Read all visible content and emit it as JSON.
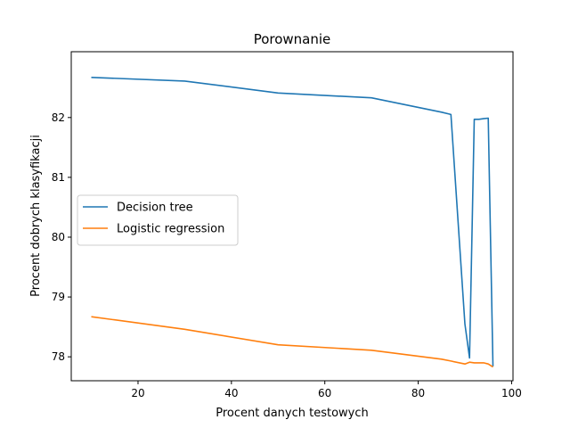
{
  "chart_data": {
    "type": "line",
    "title": "Porownanie",
    "xlabel": "Procent danych testowych",
    "ylabel": "Procent dobrych klasyfikacji",
    "xlim": [
      5.7,
      100.3
    ],
    "ylim": [
      77.6,
      83.1
    ],
    "xticks": [
      20,
      40,
      60,
      80,
      100
    ],
    "yticks": [
      78,
      79,
      80,
      81,
      82
    ],
    "grid": false,
    "legend_position": "center-left",
    "series": [
      {
        "name": "Decision tree",
        "color": "#1f77b4",
        "x": [
          10,
          30,
          50,
          70,
          85,
          87,
          90,
          91,
          92,
          93,
          94,
          95,
          96
        ],
        "y": [
          82.67,
          82.61,
          82.41,
          82.33,
          82.09,
          82.05,
          78.55,
          77.98,
          81.97,
          81.97,
          81.98,
          81.99,
          77.84
        ]
      },
      {
        "name": "Logistic regression",
        "color": "#ff7f0e",
        "x": [
          10,
          30,
          50,
          70,
          85,
          87,
          90,
          91,
          92,
          93,
          94,
          95,
          96
        ],
        "y": [
          78.67,
          78.46,
          78.2,
          78.11,
          77.96,
          77.93,
          77.88,
          77.91,
          77.9,
          77.9,
          77.9,
          77.88,
          77.83
        ]
      }
    ]
  }
}
